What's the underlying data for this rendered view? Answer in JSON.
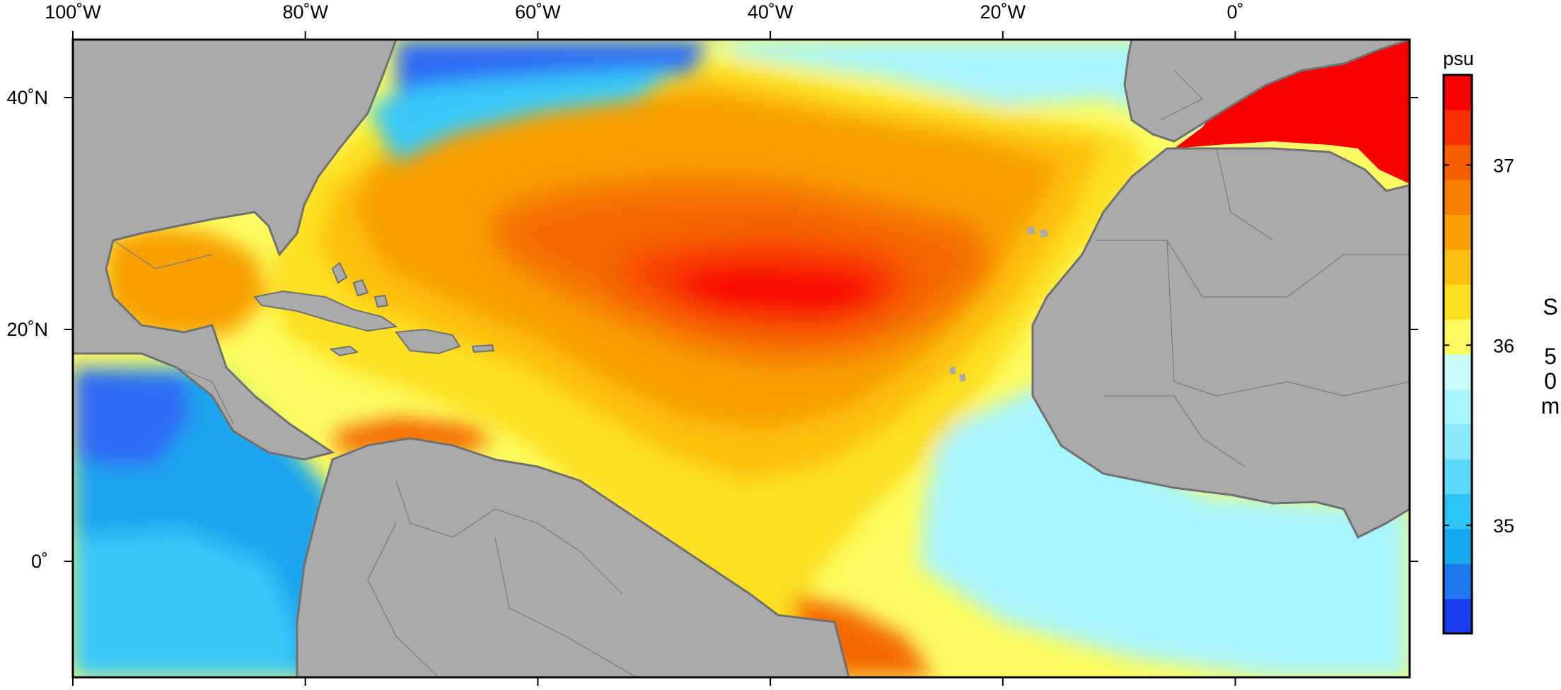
{
  "map": {
    "lon_ticks": [
      "100˚W",
      "80˚W",
      "60˚W",
      "40˚W",
      "20˚W",
      "0˚"
    ],
    "lat_ticks": [
      "40˚N",
      "20˚N",
      "0˚"
    ],
    "extent": {
      "lon_min": -100,
      "lon_max": 15,
      "lat_min": -10,
      "lat_max": 45
    },
    "colors": {
      "land": "#aaaaaa",
      "land_edge": "#707070",
      "blue_dark": "#2e6cf4",
      "blue": "#1aa6ee",
      "blue_light": "#38c8f8",
      "cyan": "#a8f4fc",
      "yellow_pale": "#fcfc60",
      "yellow": "#fce020",
      "orange_light": "#fcc010",
      "orange": "#f8a000",
      "orange_dark": "#f46a00",
      "red_orange": "#f84000",
      "red": "#f80000"
    }
  },
  "colorbar": {
    "unit": "psu",
    "ticks": [
      "37",
      "36",
      "35"
    ],
    "tick_values": [
      37,
      36,
      35
    ],
    "range": [
      34.4,
      37.5
    ],
    "colors": [
      "#1a3cf0",
      "#1e78f0",
      "#16a8ec",
      "#2cc4f4",
      "#5cd8f8",
      "#8ce8fa",
      "#a8f4fc",
      "#ccfcfc",
      "#fcfc60",
      "#fce020",
      "#fcc010",
      "#f8a000",
      "#f88000",
      "#f46000",
      "#f83000",
      "#f80000"
    ]
  },
  "variable": {
    "label_chars": [
      "S",
      "5",
      "0",
      "m"
    ]
  }
}
